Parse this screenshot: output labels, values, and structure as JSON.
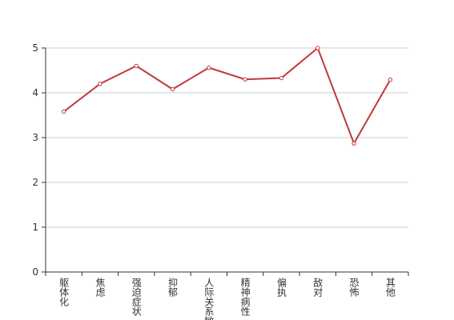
{
  "chart_data": {
    "type": "line",
    "categories": [
      "躯体化",
      "焦虑",
      "强迫症状",
      "抑郁",
      "人际关系敏感",
      "精神病性",
      "偏执",
      "敌对",
      "恐怖",
      "其他"
    ],
    "series": [
      {
        "color": "#c0393b",
        "values": [
          3.58,
          4.2,
          4.6,
          4.08,
          4.56,
          4.3,
          4.33,
          5.0,
          2.87,
          4.29
        ]
      }
    ],
    "ylim": [
      0,
      5
    ],
    "yticks": [
      0,
      1,
      2,
      3,
      4,
      5
    ],
    "grid": true
  }
}
